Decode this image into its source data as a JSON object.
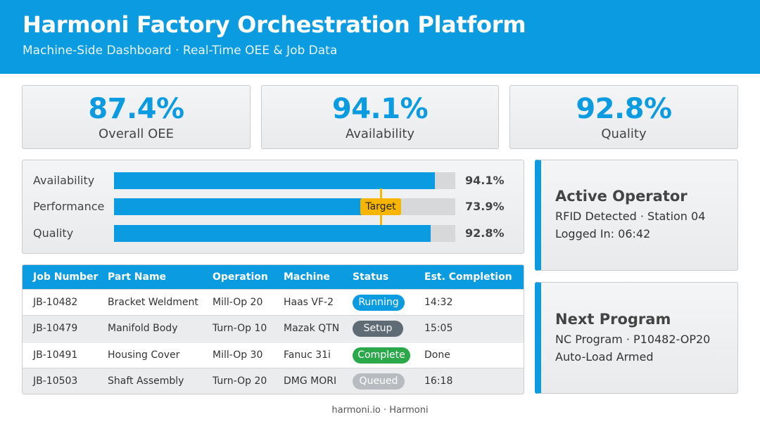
{
  "header": {
    "title": "Harmoni Factory Orchestration Platform",
    "subtitle": "Machine-Side Dashboard · Real-Time OEE & Job Data",
    "accent_color": "#0a9be0"
  },
  "kpis": [
    {
      "value": "87.4%",
      "label": "Overall OEE"
    },
    {
      "value": "94.1%",
      "label": "Availability"
    },
    {
      "value": "92.8%",
      "label": "Quality"
    }
  ],
  "bars": {
    "rows": [
      {
        "label": "Availability",
        "value": "94.1%",
        "fraction": 0.941
      },
      {
        "label": "Performance",
        "value": "73.9%",
        "fraction": 0.739
      },
      {
        "label": "Quality",
        "value": "92.8%",
        "fraction": 0.928
      }
    ],
    "target_label": "Target",
    "target_color": "#f7b500"
  },
  "operator": {
    "title": "Active Operator",
    "line1": "RFID Detected · Station 04",
    "line2": "Logged In: 06:42"
  },
  "next_program": {
    "title": "Next Program",
    "line1": "NC Program · P10482-OP20",
    "line2": "Auto-Load Armed"
  },
  "jobs": {
    "columns": [
      "Job Number",
      "Part Name",
      "Operation",
      "Machine",
      "Status",
      "Est. Completion"
    ],
    "rows": [
      {
        "job": "JB-10482",
        "part": "Bracket Weldment",
        "op": "Mill-Op 20",
        "machine": "Haas VF-2",
        "status": "Running",
        "eta": "14:32"
      },
      {
        "job": "JB-10479",
        "part": "Manifold Body",
        "op": "Turn-Op 10",
        "machine": "Mazak QTN",
        "status": "Setup",
        "eta": "15:05"
      },
      {
        "job": "JB-10491",
        "part": "Housing Cover",
        "op": "Mill-Op 30",
        "machine": "Fanuc 31i",
        "status": "Complete",
        "eta": "Done"
      },
      {
        "job": "JB-10503",
        "part": "Shaft Assembly",
        "op": "Turn-Op 20",
        "machine": "DMG MORI",
        "status": "Queued",
        "eta": "16:18"
      }
    ],
    "status_colors": {
      "Running": "#0a9be0",
      "Setup": "#5f6b75",
      "Complete": "#2aa84a",
      "Queued": "#b8bcc0"
    }
  },
  "footer": "harmoni.io · Harmoni"
}
